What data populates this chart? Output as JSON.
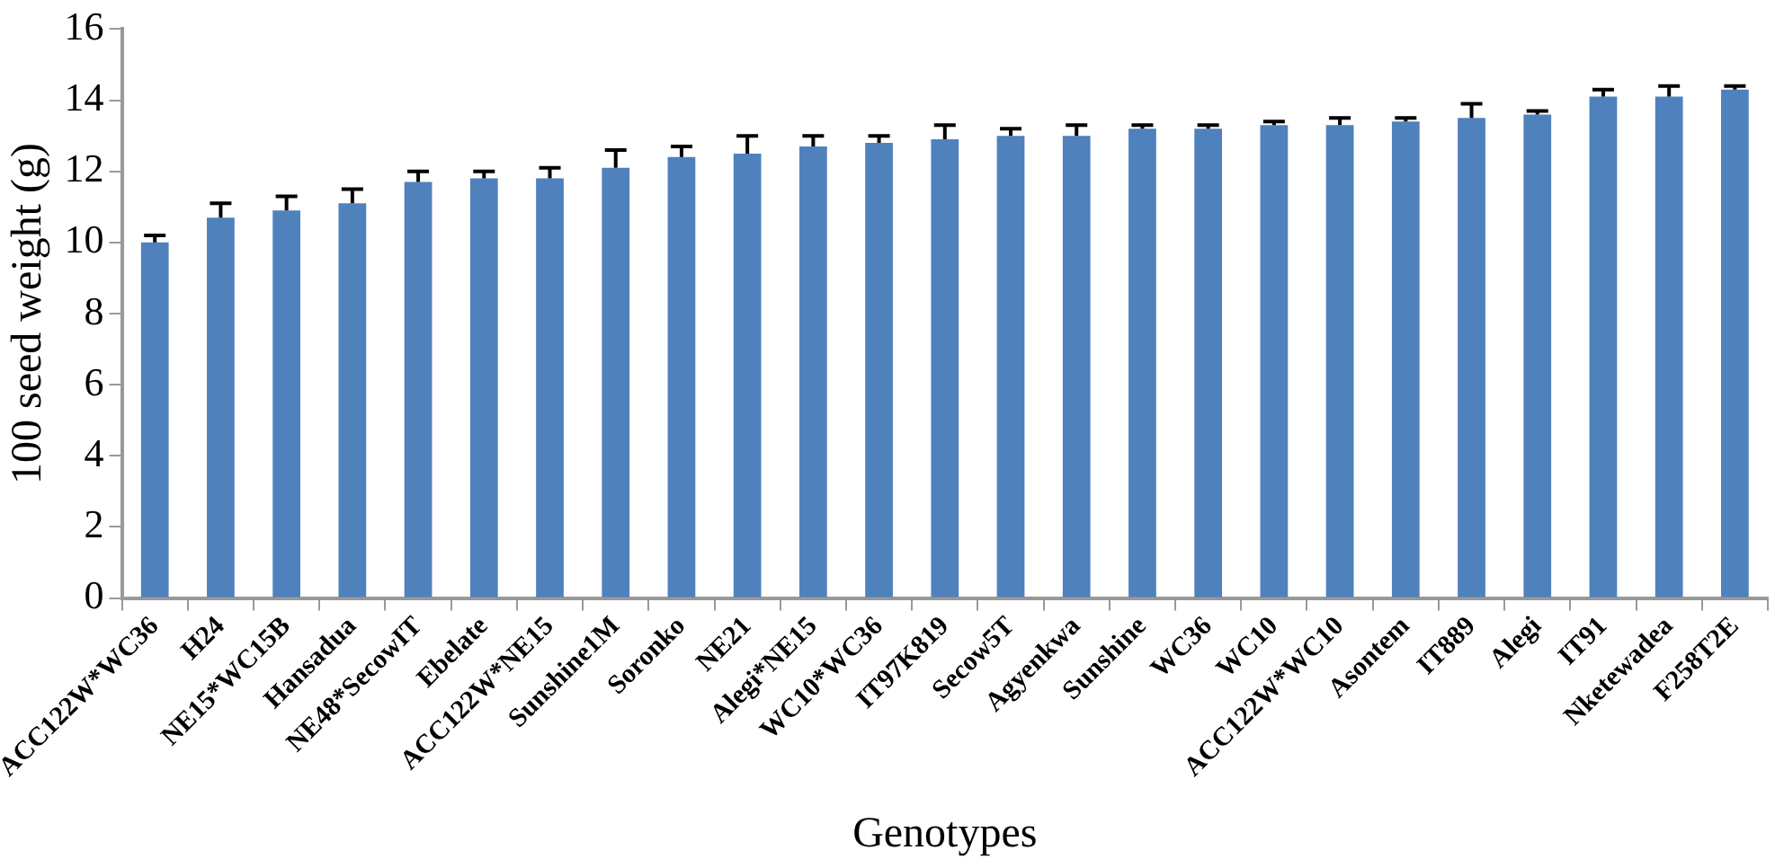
{
  "chart_data": {
    "type": "bar",
    "xlabel": "Genotypes",
    "ylabel": "100 seed weight (g)",
    "categories": [
      "ACC122W*WC36",
      "H24",
      "NE15*WC15B",
      "Hansadua",
      "NE48*SecowIT",
      "Ebelate",
      "ACC122W*NE15",
      "Sunshine1M",
      "Soronko",
      "NE21",
      "Alegi*NE15",
      "WC10*WC36",
      "IT97K819",
      "Secow5T",
      "Agyenkwa",
      "Sunshine",
      "WC36",
      "WC10",
      "ACC122W*WC10",
      "Asontem",
      "IT889",
      "Alegi",
      "IT91",
      "Nketewadea",
      "F258T2E"
    ],
    "values": [
      10.0,
      10.7,
      10.9,
      11.1,
      11.7,
      11.8,
      11.8,
      12.1,
      12.4,
      12.5,
      12.7,
      12.8,
      12.9,
      13.0,
      13.0,
      13.2,
      13.2,
      13.3,
      13.3,
      13.4,
      13.5,
      13.6,
      14.1,
      14.1,
      14.3
    ],
    "errors": [
      [
        10.0,
        10.2
      ],
      [
        10.7,
        11.1
      ],
      [
        10.9,
        11.3
      ],
      [
        11.1,
        11.5
      ],
      [
        11.7,
        12.0
      ],
      [
        11.8,
        12.0
      ],
      [
        11.8,
        12.1
      ],
      [
        12.1,
        12.6
      ],
      [
        12.4,
        12.7
      ],
      [
        12.5,
        13.0
      ],
      [
        12.7,
        13.0
      ],
      [
        12.8,
        13.0
      ],
      [
        12.9,
        13.3
      ],
      [
        13.0,
        13.2
      ],
      [
        13.0,
        13.3
      ],
      [
        13.2,
        13.3
      ],
      [
        13.2,
        13.3
      ],
      [
        13.3,
        13.4
      ],
      [
        13.3,
        13.5
      ],
      [
        13.4,
        13.5
      ],
      [
        13.5,
        13.9
      ],
      [
        13.6,
        13.7
      ],
      [
        14.1,
        14.3
      ],
      [
        14.1,
        14.4
      ],
      [
        14.3,
        14.4
      ]
    ],
    "color": "#4f81bd",
    "ylim": [
      0,
      16
    ],
    "yticks": [
      0,
      2,
      4,
      6,
      8,
      10,
      12,
      14,
      16
    ],
    "grid": false,
    "legend": false
  }
}
